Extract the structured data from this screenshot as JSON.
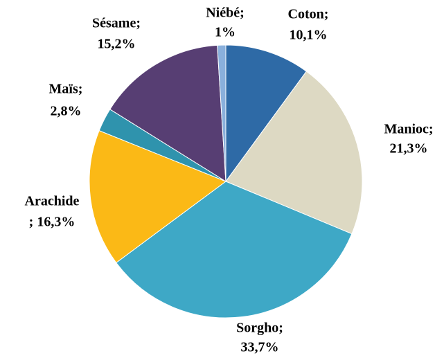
{
  "chart_data": {
    "type": "pie",
    "categories": [
      "Coton;",
      "Manioc;",
      "Sorgho;",
      "Arachide",
      "Maïs;",
      "Sésame;",
      "Niébé;"
    ],
    "values": [
      10.1,
      21.3,
      33.7,
      16.3,
      2.8,
      15.2,
      1
    ],
    "value_labels": [
      "10,1%",
      "21,3%",
      "33,7%",
      "; 16,3%",
      "2,8%",
      "15,2%",
      "1%"
    ],
    "colors": [
      "#2e6aa6",
      "#ddd9c3",
      "#3ea8c6",
      "#fbb916",
      "#2f93ad",
      "#573e73",
      "#8ab0dc"
    ]
  }
}
